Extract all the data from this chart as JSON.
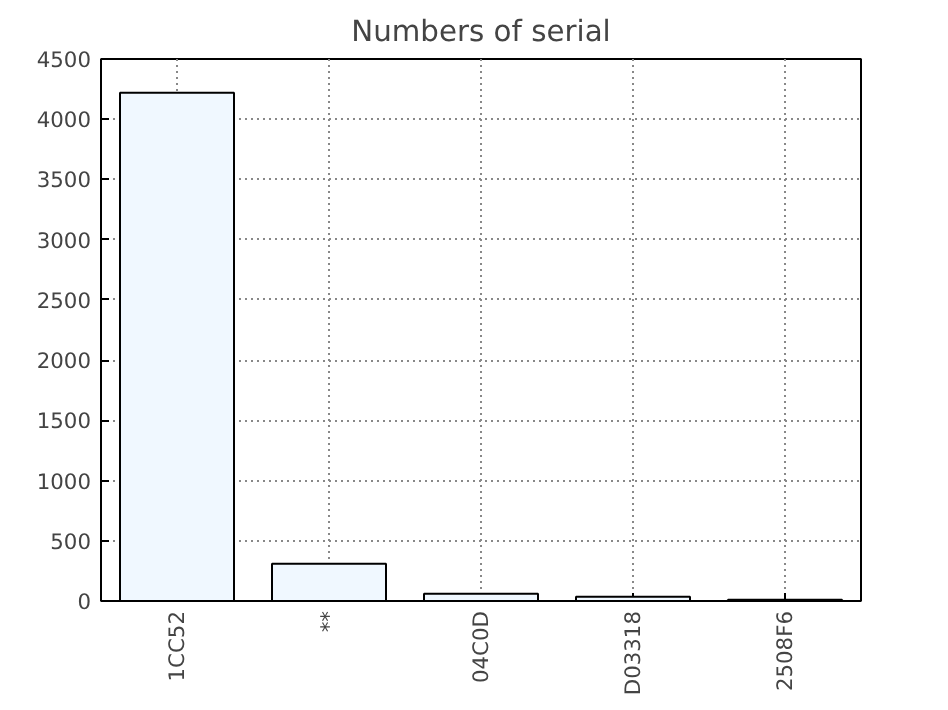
{
  "chart_data": {
    "type": "bar",
    "title": "Numbers of serial",
    "categories": [
      "1CC52",
      "**",
      "04C0D",
      "D03318",
      "2508F6"
    ],
    "values": [
      4220,
      310,
      60,
      35,
      10
    ],
    "color": "#f0f8ff",
    "ylim": [
      0,
      4500
    ],
    "yticks": [
      0,
      500,
      1000,
      1500,
      2000,
      2500,
      3000,
      3500,
      4000,
      4500
    ],
    "grid": true
  }
}
